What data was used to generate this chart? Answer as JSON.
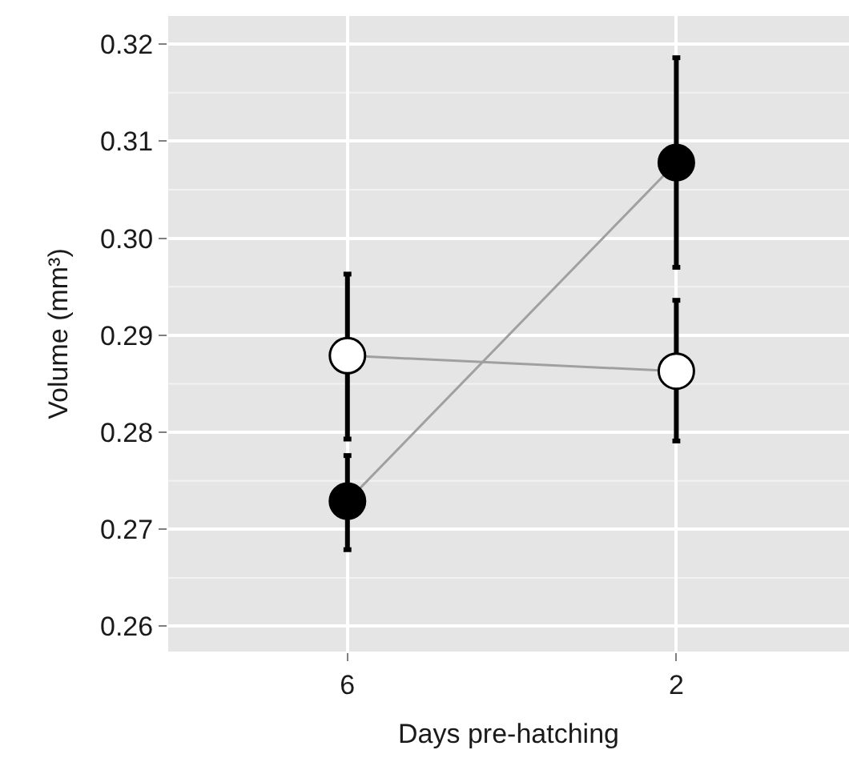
{
  "chart_data": {
    "type": "line",
    "xlabel": "Days pre-hatching",
    "ylabel": "Volume (mm³)",
    "categories": [
      "6",
      "2"
    ],
    "series": [
      {
        "color": "#a0a0a0",
        "colors": [
          "#000000",
          "#000000"
        ],
        "values": [
          0.2729,
          0.3078
        ],
        "errors": [
          [
            0.2679,
            0.2776
          ],
          [
            0.297,
            0.3186
          ]
        ]
      },
      {
        "color": "#a0a0a0",
        "colors": [
          "#ffffff",
          "#ffffff"
        ],
        "values": [
          0.2879,
          0.2863
        ],
        "errors": [
          [
            0.2793,
            0.2963
          ],
          [
            0.2791,
            0.2936
          ]
        ]
      }
    ],
    "ylim": [
      0.2574,
      0.3229
    ],
    "yticks": [
      {
        "value": 0.26,
        "label": "0.26"
      },
      {
        "value": 0.27,
        "label": "0.27"
      },
      {
        "value": 0.28,
        "label": "0.28"
      },
      {
        "value": 0.29,
        "label": "0.29"
      },
      {
        "value": 0.3,
        "label": "0.30"
      },
      {
        "value": 0.31,
        "label": "0.31"
      },
      {
        "value": 0.32,
        "label": "0.32"
      }
    ],
    "grid": true,
    "marker": "circle",
    "line_style": "solid"
  }
}
